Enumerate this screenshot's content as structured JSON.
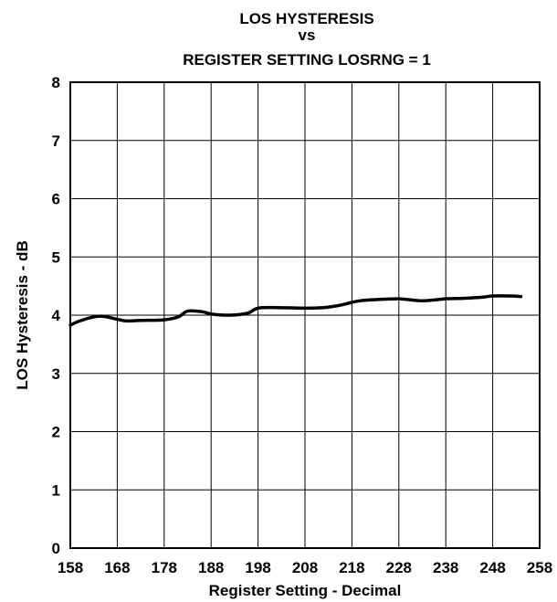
{
  "chart_data": {
    "type": "line",
    "title_lines": [
      "LOS HYSTERESIS",
      "vs",
      "REGISTER SETTING LOSRNG = 1"
    ],
    "xlabel": "Register Setting - Decimal",
    "ylabel": "LOS Hysteresis - dB",
    "xlim": [
      158,
      258
    ],
    "ylim": [
      0,
      8
    ],
    "x_ticks": [
      158,
      168,
      178,
      188,
      198,
      208,
      218,
      228,
      238,
      248,
      258
    ],
    "y_ticks": [
      0,
      1,
      2,
      3,
      4,
      5,
      6,
      7,
      8
    ],
    "grid": true,
    "legend": "none",
    "line_color": "#000000",
    "series": [
      {
        "x": [
          158,
          160,
          163,
          165,
          168,
          170,
          173,
          178,
          181,
          183,
          186,
          188,
          191,
          194,
          196,
          198,
          202,
          208,
          212,
          214,
          216,
          218,
          220,
          224,
          228,
          232,
          234,
          238,
          242,
          246,
          248,
          252,
          254
        ],
        "y": [
          3.83,
          3.9,
          3.97,
          3.98,
          3.93,
          3.9,
          3.91,
          3.92,
          3.97,
          4.07,
          4.06,
          4.02,
          4.0,
          4.01,
          4.04,
          4.12,
          4.13,
          4.12,
          4.13,
          4.15,
          4.18,
          4.22,
          4.25,
          4.27,
          4.28,
          4.25,
          4.25,
          4.28,
          4.29,
          4.31,
          4.33,
          4.33,
          4.32
        ]
      }
    ]
  }
}
